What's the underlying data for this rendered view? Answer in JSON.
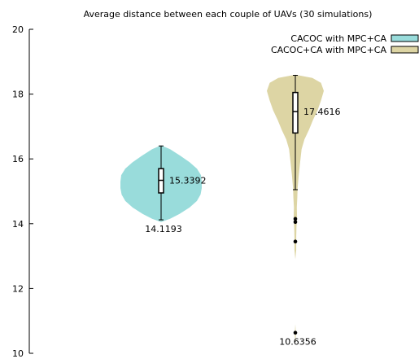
{
  "chart_data": {
    "type": "violin",
    "title": "Average distance between each couple of UAVs (30 simulations)",
    "xlabel": "",
    "ylabel": "",
    "ylim": [
      10,
      20
    ],
    "yticks": [
      10,
      12,
      14,
      16,
      18,
      20
    ],
    "legend_position": "top-right",
    "series": [
      {
        "name": "CACOC with MPC+CA",
        "color": "#99dcdb",
        "median": 15.3392,
        "median_label": "15.3392",
        "q1": 14.95,
        "q3": 15.7,
        "whisker_low": 14.1193,
        "whisker_high": 16.4,
        "min_label": "14.1193",
        "outliers": [],
        "density": [
          [
            14.05,
            0.0
          ],
          [
            14.15,
            0.22
          ],
          [
            14.3,
            0.45
          ],
          [
            14.5,
            0.7
          ],
          [
            14.7,
            0.88
          ],
          [
            14.9,
            0.97
          ],
          [
            15.1,
            1.0
          ],
          [
            15.3,
            1.0
          ],
          [
            15.5,
            0.98
          ],
          [
            15.7,
            0.88
          ],
          [
            15.9,
            0.7
          ],
          [
            16.1,
            0.47
          ],
          [
            16.3,
            0.22
          ],
          [
            16.42,
            0.0
          ]
        ]
      },
      {
        "name": "CACOC+CA with MPC+CA",
        "color": "#ddd5a4",
        "median": 17.4616,
        "median_label": "17.4616",
        "q1": 16.8,
        "q3": 18.05,
        "whisker_low": 15.05,
        "whisker_high": 18.58,
        "min_label": "10.6356",
        "outliers": [
          14.05,
          14.15,
          13.45,
          10.6356
        ],
        "density": [
          [
            10.3,
            0.0
          ],
          [
            10.6,
            0.02
          ],
          [
            10.9,
            0.0
          ],
          [
            12.9,
            0.0
          ],
          [
            13.2,
            0.03
          ],
          [
            13.6,
            0.03
          ],
          [
            13.9,
            0.04
          ],
          [
            14.2,
            0.06
          ],
          [
            14.5,
            0.05
          ],
          [
            14.8,
            0.07
          ],
          [
            15.1,
            0.08
          ],
          [
            15.5,
            0.12
          ],
          [
            15.9,
            0.17
          ],
          [
            16.3,
            0.22
          ],
          [
            16.6,
            0.32
          ],
          [
            16.9,
            0.48
          ],
          [
            17.2,
            0.62
          ],
          [
            17.5,
            0.78
          ],
          [
            17.8,
            0.9
          ],
          [
            18.1,
            1.0
          ],
          [
            18.35,
            0.9
          ],
          [
            18.5,
            0.6
          ],
          [
            18.6,
            0.0
          ]
        ]
      }
    ]
  }
}
